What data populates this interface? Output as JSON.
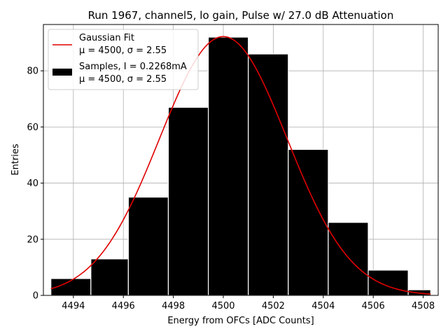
{
  "chart_data": {
    "type": "bar",
    "title": "Run 1967, channel5, lo gain, Pulse w/ 27.0 dB Attenuation",
    "xlabel": "Energy from OFCs [ADC Counts]",
    "ylabel": "Entries",
    "xlim": [
      4492.8,
      4508.6
    ],
    "ylim": [
      0,
      96.5
    ],
    "grid": true,
    "legend_position": "upper-left",
    "x_ticks": [
      "4494",
      "4496",
      "4498",
      "4500",
      "4502",
      "4504",
      "4506",
      "4508"
    ],
    "y_ticks": [
      "0",
      "20",
      "40",
      "60",
      "80"
    ],
    "histogram": {
      "name": "Samples, I = 0.2268mA",
      "stats": "μ = 4500, σ = 2.55",
      "color": "#000000",
      "edgecolor": "#ffffff",
      "bins": [
        {
          "x0": 4493.1,
          "x1": 4494.7,
          "count": 6
        },
        {
          "x0": 4494.7,
          "x1": 4496.2,
          "count": 13
        },
        {
          "x0": 4496.2,
          "x1": 4497.8,
          "count": 35
        },
        {
          "x0": 4497.8,
          "x1": 4499.4,
          "count": 67
        },
        {
          "x0": 4499.4,
          "x1": 4501.0,
          "count": 92
        },
        {
          "x0": 4501.0,
          "x1": 4502.6,
          "count": 86
        },
        {
          "x0": 4502.6,
          "x1": 4504.2,
          "count": 52
        },
        {
          "x0": 4504.2,
          "x1": 4505.8,
          "count": 26
        },
        {
          "x0": 4505.8,
          "x1": 4507.4,
          "count": 9
        },
        {
          "x0": 4507.4,
          "x1": 4508.3,
          "count": 2
        }
      ]
    },
    "fit": {
      "name": "Gaussian Fit",
      "stats": "μ = 4500, σ = 2.55",
      "color": "#e00000",
      "mu": 4500.0,
      "sigma": 2.55,
      "amplitude": 92.2,
      "x_range": [
        4493.1,
        4508.3
      ]
    }
  }
}
